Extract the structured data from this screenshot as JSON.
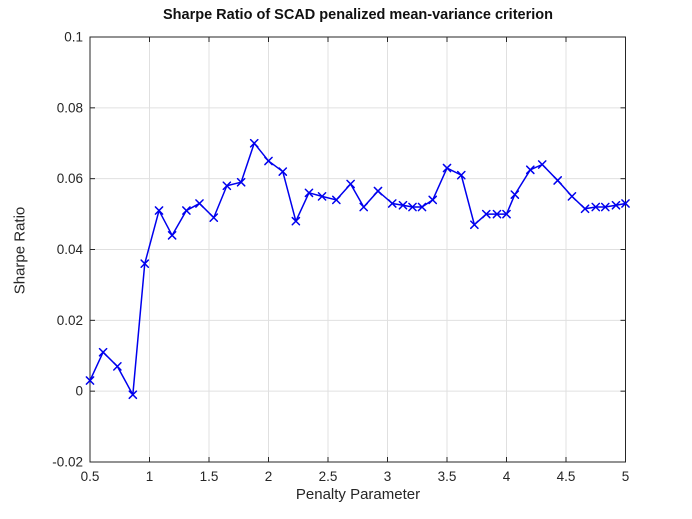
{
  "figure": {
    "title": "Sharpe Ratio of SCAD penalized mean-variance criterion",
    "xlabel": "Penalty Parameter",
    "ylabel": "Sharpe Ratio"
  },
  "chart_data": {
    "type": "line",
    "title": "Sharpe Ratio of SCAD penalized mean-variance criterion",
    "xlabel": "Penalty Parameter",
    "ylabel": "Sharpe Ratio",
    "xlim": [
      0.5,
      5
    ],
    "ylim": [
      -0.02,
      0.1
    ],
    "x_ticks": [
      0.5,
      1,
      1.5,
      2,
      2.5,
      3,
      3.5,
      4,
      4.5,
      5
    ],
    "x_tick_labels": [
      "0.5",
      "1",
      "1.5",
      "2",
      "2.5",
      "3",
      "3.5",
      "4",
      "4.5",
      "5"
    ],
    "y_ticks": [
      -0.02,
      0,
      0.02,
      0.04,
      0.06,
      0.08,
      0.1
    ],
    "y_tick_labels": [
      "-0.02",
      "0",
      "0.02",
      "0.04",
      "0.06",
      "0.08",
      "0.1"
    ],
    "grid": true,
    "legend": "none",
    "marker": "x",
    "colors": {
      "line": "#0000EE",
      "grid": "#e0e0e0",
      "axis": "#262626",
      "background": "#ffffff"
    },
    "series": [
      {
        "name": "Sharpe Ratio",
        "x": [
          0.5,
          0.61,
          0.73,
          0.86,
          0.96,
          1.08,
          1.19,
          1.31,
          1.42,
          1.54,
          1.65,
          1.77,
          1.88,
          2.0,
          2.12,
          2.23,
          2.34,
          2.45,
          2.57,
          2.69,
          2.8,
          2.92,
          3.04,
          3.13,
          3.21,
          3.29,
          3.38,
          3.5,
          3.62,
          3.73,
          3.83,
          3.92,
          4.0,
          4.07,
          4.2,
          4.3,
          4.43,
          4.55,
          4.66,
          4.75,
          4.83,
          4.92,
          5.0
        ],
        "y": [
          0.003,
          0.011,
          0.007,
          -0.001,
          0.036,
          0.051,
          0.044,
          0.051,
          0.053,
          0.049,
          0.058,
          0.059,
          0.07,
          0.065,
          0.062,
          0.048,
          0.056,
          0.055,
          0.054,
          0.0585,
          0.052,
          0.0565,
          0.053,
          0.0525,
          0.052,
          0.052,
          0.054,
          0.063,
          0.061,
          0.047,
          0.05,
          0.05,
          0.05,
          0.0555,
          0.0625,
          0.064,
          0.0595,
          0.055,
          0.0515,
          0.052,
          0.052,
          0.0525,
          0.053
        ]
      }
    ]
  }
}
